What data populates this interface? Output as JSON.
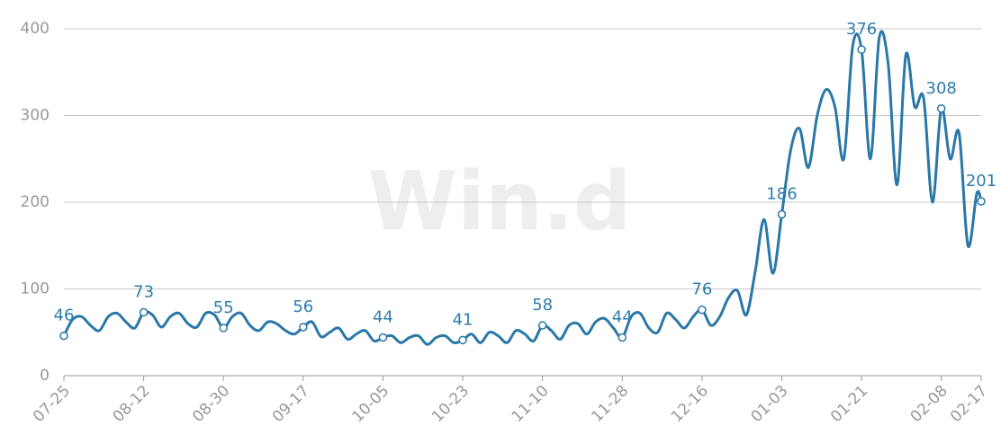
{
  "chart_data": {
    "type": "line",
    "watermark": "Win.d",
    "x": [
      0,
      2,
      4,
      6,
      8,
      10,
      12,
      14,
      16,
      18,
      20,
      22,
      24,
      26,
      28,
      30,
      32,
      34,
      36,
      38,
      40,
      42,
      44,
      46,
      48,
      50,
      52,
      54,
      56,
      58,
      60,
      62,
      64,
      66,
      68,
      70,
      72,
      74,
      76,
      78,
      80,
      82,
      84,
      86,
      88,
      90,
      92,
      94,
      96,
      98,
      100,
      102,
      104,
      106,
      108,
      110,
      112,
      114,
      116,
      118,
      120,
      122,
      124,
      126,
      128,
      130,
      132,
      134,
      136,
      138,
      140,
      142,
      144,
      146,
      148,
      150,
      152,
      154,
      156,
      158,
      160,
      162,
      164,
      166,
      168,
      170,
      172,
      174,
      176,
      178,
      180,
      182,
      184,
      186,
      188,
      190,
      192,
      194,
      196,
      198,
      200,
      202,
      204,
      206,
      207
    ],
    "values": [
      46,
      65,
      68,
      58,
      52,
      68,
      72,
      62,
      55,
      73,
      70,
      56,
      68,
      72,
      60,
      56,
      72,
      70,
      55,
      68,
      72,
      58,
      52,
      62,
      60,
      52,
      48,
      56,
      62,
      45,
      50,
      55,
      42,
      48,
      52,
      40,
      44,
      46,
      38,
      44,
      46,
      36,
      44,
      46,
      38,
      41,
      48,
      38,
      50,
      46,
      38,
      52,
      48,
      40,
      58,
      52,
      42,
      58,
      60,
      48,
      62,
      66,
      55,
      44,
      68,
      72,
      55,
      50,
      72,
      65,
      55,
      68,
      76,
      58,
      68,
      90,
      98,
      70,
      120,
      180,
      118,
      186,
      260,
      285,
      240,
      300,
      330,
      310,
      250,
      380,
      376,
      250,
      390,
      360,
      220,
      370,
      310,
      320,
      200,
      308,
      250,
      280,
      150,
      210,
      201
    ],
    "color": "#2a78a8",
    "xlim": [
      0,
      207
    ],
    "xticks": [
      {
        "value": 0,
        "label": "07-25"
      },
      {
        "value": 18,
        "label": "08-12"
      },
      {
        "value": 36,
        "label": "08-30"
      },
      {
        "value": 54,
        "label": "09-17"
      },
      {
        "value": 72,
        "label": "10-05"
      },
      {
        "value": 90,
        "label": "10-23"
      },
      {
        "value": 108,
        "label": "11-10"
      },
      {
        "value": 126,
        "label": "11-28"
      },
      {
        "value": 144,
        "label": "12-16"
      },
      {
        "value": 162,
        "label": "01-03"
      },
      {
        "value": 180,
        "label": "01-21"
      },
      {
        "value": 198,
        "label": "02-08"
      },
      {
        "value": 207,
        "label": "02-17"
      }
    ],
    "ylim": [
      0,
      400
    ],
    "yticks": [
      0,
      100,
      200,
      300,
      400
    ],
    "grid": true
  }
}
